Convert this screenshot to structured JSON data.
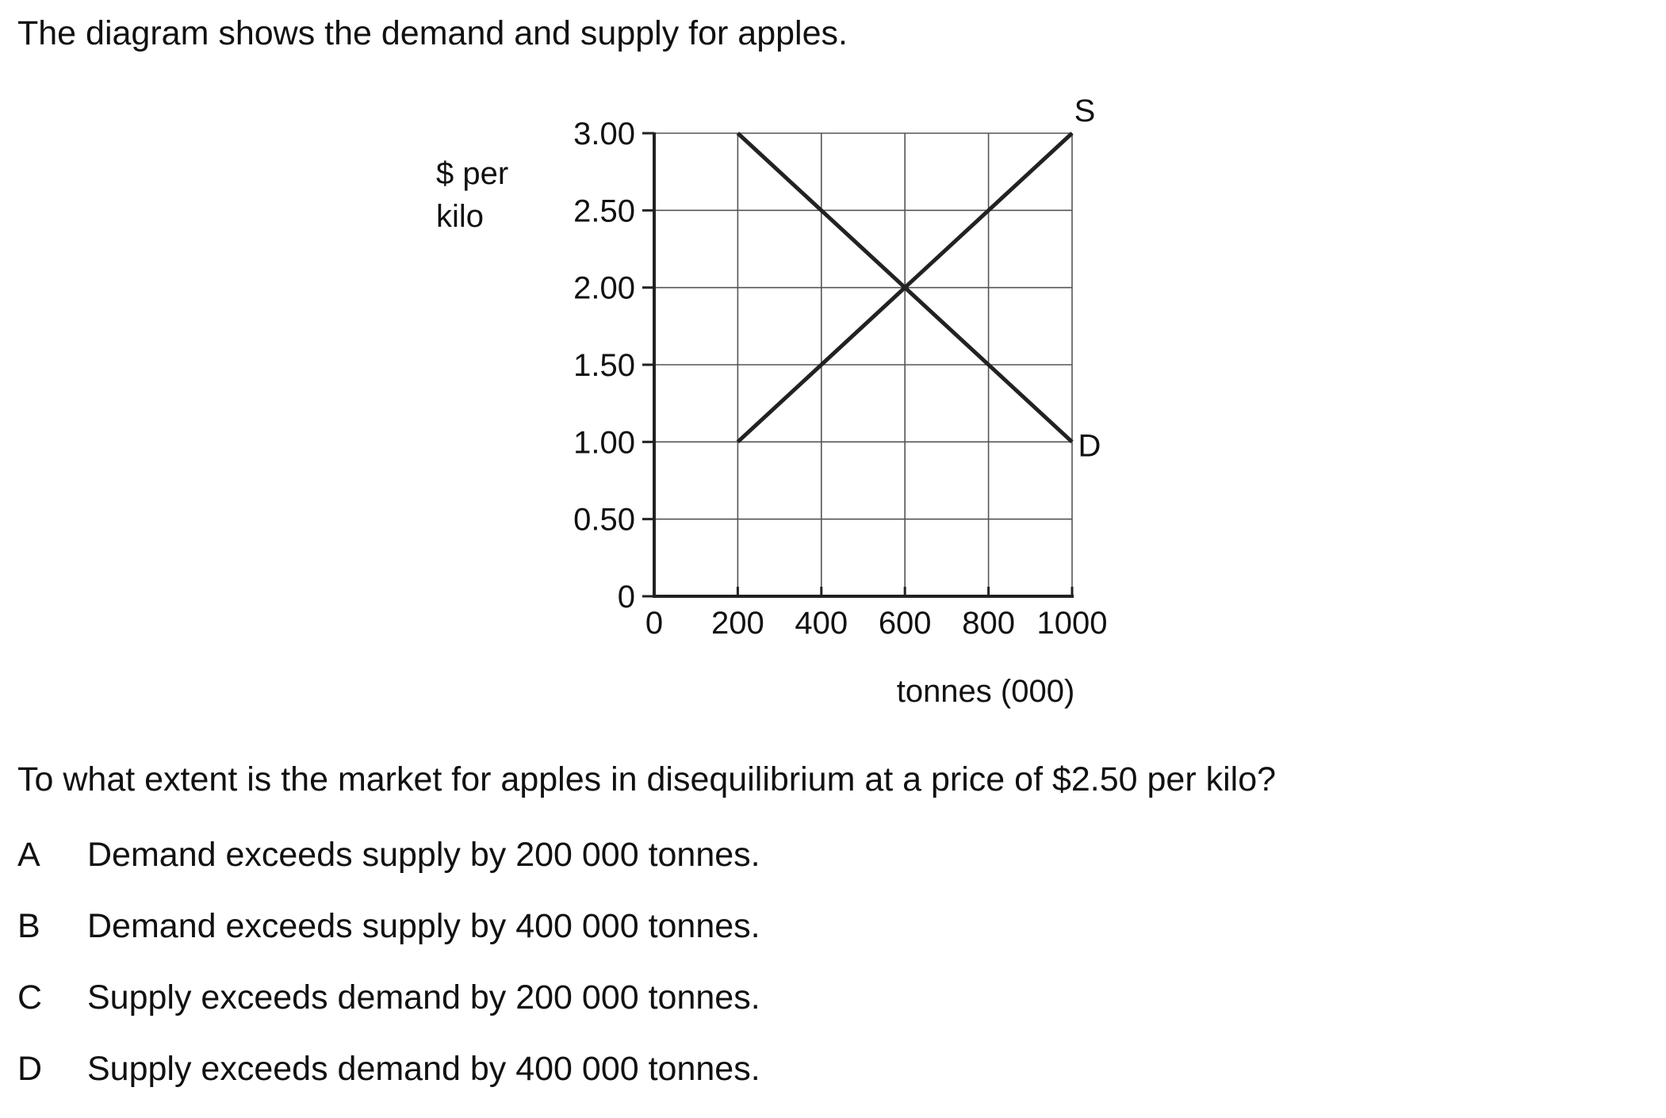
{
  "intro_text": "The diagram shows the demand and supply for apples.",
  "question_text": "To what extent is the market for apples in disequilibrium at a price of $2.50 per kilo?",
  "options": [
    {
      "letter": "A",
      "text": "Demand exceeds supply by 200 000 tonnes."
    },
    {
      "letter": "B",
      "text": "Demand exceeds supply by 400 000 tonnes."
    },
    {
      "letter": "C",
      "text": "Supply exceeds demand by 200 000 tonnes."
    },
    {
      "letter": "D",
      "text": "Supply exceeds demand by 400 000 tonnes."
    }
  ],
  "chart_data": {
    "type": "line",
    "title": "",
    "ylabel_lines": [
      "$ per",
      "kilo"
    ],
    "xlabel": "tonnes (000)",
    "xlim": [
      0,
      1000
    ],
    "ylim": [
      0,
      3
    ],
    "x_ticks": [
      0,
      200,
      400,
      600,
      800,
      1000
    ],
    "x_tick_labels": [
      "0",
      "200",
      "400",
      "600",
      "800",
      "1000"
    ],
    "y_ticks": [
      0,
      0.5,
      1,
      1.5,
      2,
      2.5,
      3
    ],
    "y_tick_labels": [
      "0",
      "0.50",
      "1.00",
      "1.50",
      "2.00",
      "2.50",
      "3.00"
    ],
    "grid": true,
    "series": [
      {
        "name": "S",
        "x": [
          200,
          1000
        ],
        "y": [
          1.0,
          3.0
        ]
      },
      {
        "name": "D",
        "x": [
          200,
          1000
        ],
        "y": [
          3.0,
          1.0
        ]
      }
    ]
  }
}
